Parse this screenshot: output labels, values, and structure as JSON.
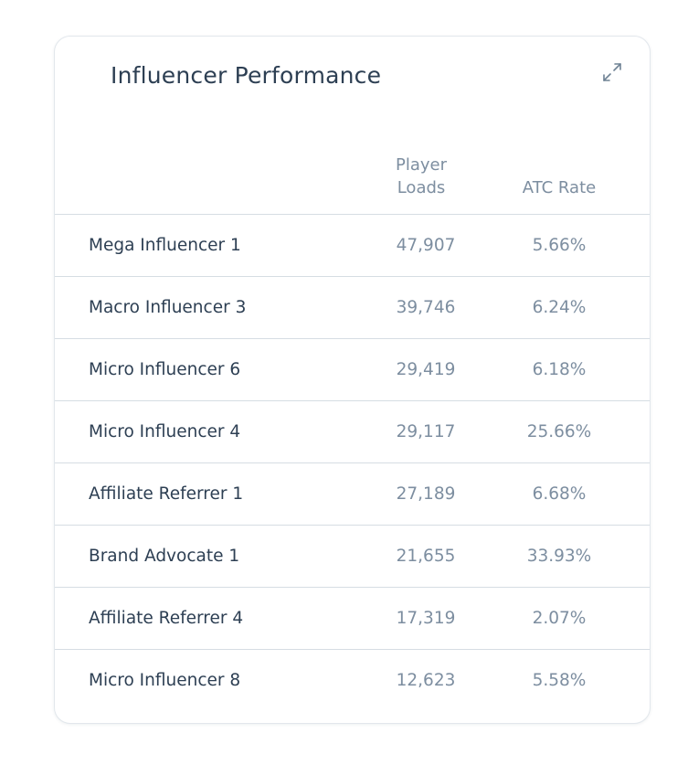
{
  "card": {
    "title": "Influencer Performance",
    "expand_icon": "expand-arrows-icon"
  },
  "table": {
    "columns": [
      {
        "key": "name",
        "label": ""
      },
      {
        "key": "player_loads",
        "label": "Player\nLoads"
      },
      {
        "key": "atc_rate",
        "label": "ATC Rate"
      }
    ],
    "rows": [
      {
        "name": "Mega Influencer 1",
        "player_loads": "47,907",
        "atc_rate": "5.66%"
      },
      {
        "name": "Macro Influencer 3",
        "player_loads": "39,746",
        "atc_rate": "6.24%"
      },
      {
        "name": "Micro Influencer 6",
        "player_loads": "29,419",
        "atc_rate": "6.18%"
      },
      {
        "name": "Micro Influencer 4",
        "player_loads": "29,117",
        "atc_rate": "25.66%"
      },
      {
        "name": "Affiliate Referrer 1",
        "player_loads": "27,189",
        "atc_rate": "6.68%"
      },
      {
        "name": "Brand Advocate 1",
        "player_loads": "21,655",
        "atc_rate": "33.93%"
      },
      {
        "name": "Affiliate Referrer 4",
        "player_loads": "17,319",
        "atc_rate": "2.07%"
      },
      {
        "name": "Micro Influencer 8",
        "player_loads": "12,623",
        "atc_rate": "5.58%"
      }
    ]
  },
  "colors": {
    "title_text": "#2d3f53",
    "muted_text": "#7d8ea0",
    "divider": "#d6dde3",
    "card_border": "#e2e7ec"
  }
}
